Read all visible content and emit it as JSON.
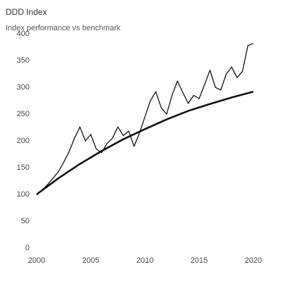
{
  "chart_data": {
    "type": "line",
    "title": "DDD Index",
    "subtitle": "Index performance vs benchmark",
    "xlim": [
      2000,
      2020
    ],
    "xticks": [
      2000,
      2005,
      2010,
      2015,
      2020
    ],
    "ylim": [
      0,
      400
    ],
    "yticks": [
      0,
      50,
      100,
      150,
      200,
      250,
      300,
      350,
      400
    ],
    "grid": false,
    "series": [
      {
        "color": "#111111",
        "x": [
          2000,
          2000.5,
          2001,
          2001.5,
          2002,
          2002.5,
          2003,
          2003.5,
          2004,
          2004.5,
          2005,
          2005.5,
          2006,
          2006.5,
          2007,
          2007.5,
          2008,
          2008.5,
          2009,
          2009.5,
          2010,
          2010.5,
          2011,
          2011.5,
          2012,
          2012.5,
          2013,
          2013.5,
          2014,
          2014.5,
          2015,
          2015.5,
          2016,
          2016.5,
          2017,
          2017.5,
          2018,
          2018.5,
          2019,
          2019.5,
          2020
        ],
        "values": [
          100,
          108,
          118,
          130,
          142,
          160,
          180,
          205,
          226,
          200,
          212,
          185,
          178,
          195,
          205,
          226,
          210,
          218,
          190,
          215,
          245,
          275,
          292,
          262,
          250,
          285,
          312,
          290,
          270,
          285,
          279,
          305,
          332,
          300,
          295,
          325,
          338,
          318,
          330,
          378,
          382
        ]
      },
      {
        "color": "#111111",
        "x": [
          2000,
          2002,
          2004,
          2006,
          2008,
          2010,
          2012,
          2014,
          2016,
          2018,
          2020
        ],
        "values": [
          100,
          130,
          157,
          181,
          203,
          222,
          240,
          256,
          269,
          281,
          292
        ]
      }
    ]
  }
}
